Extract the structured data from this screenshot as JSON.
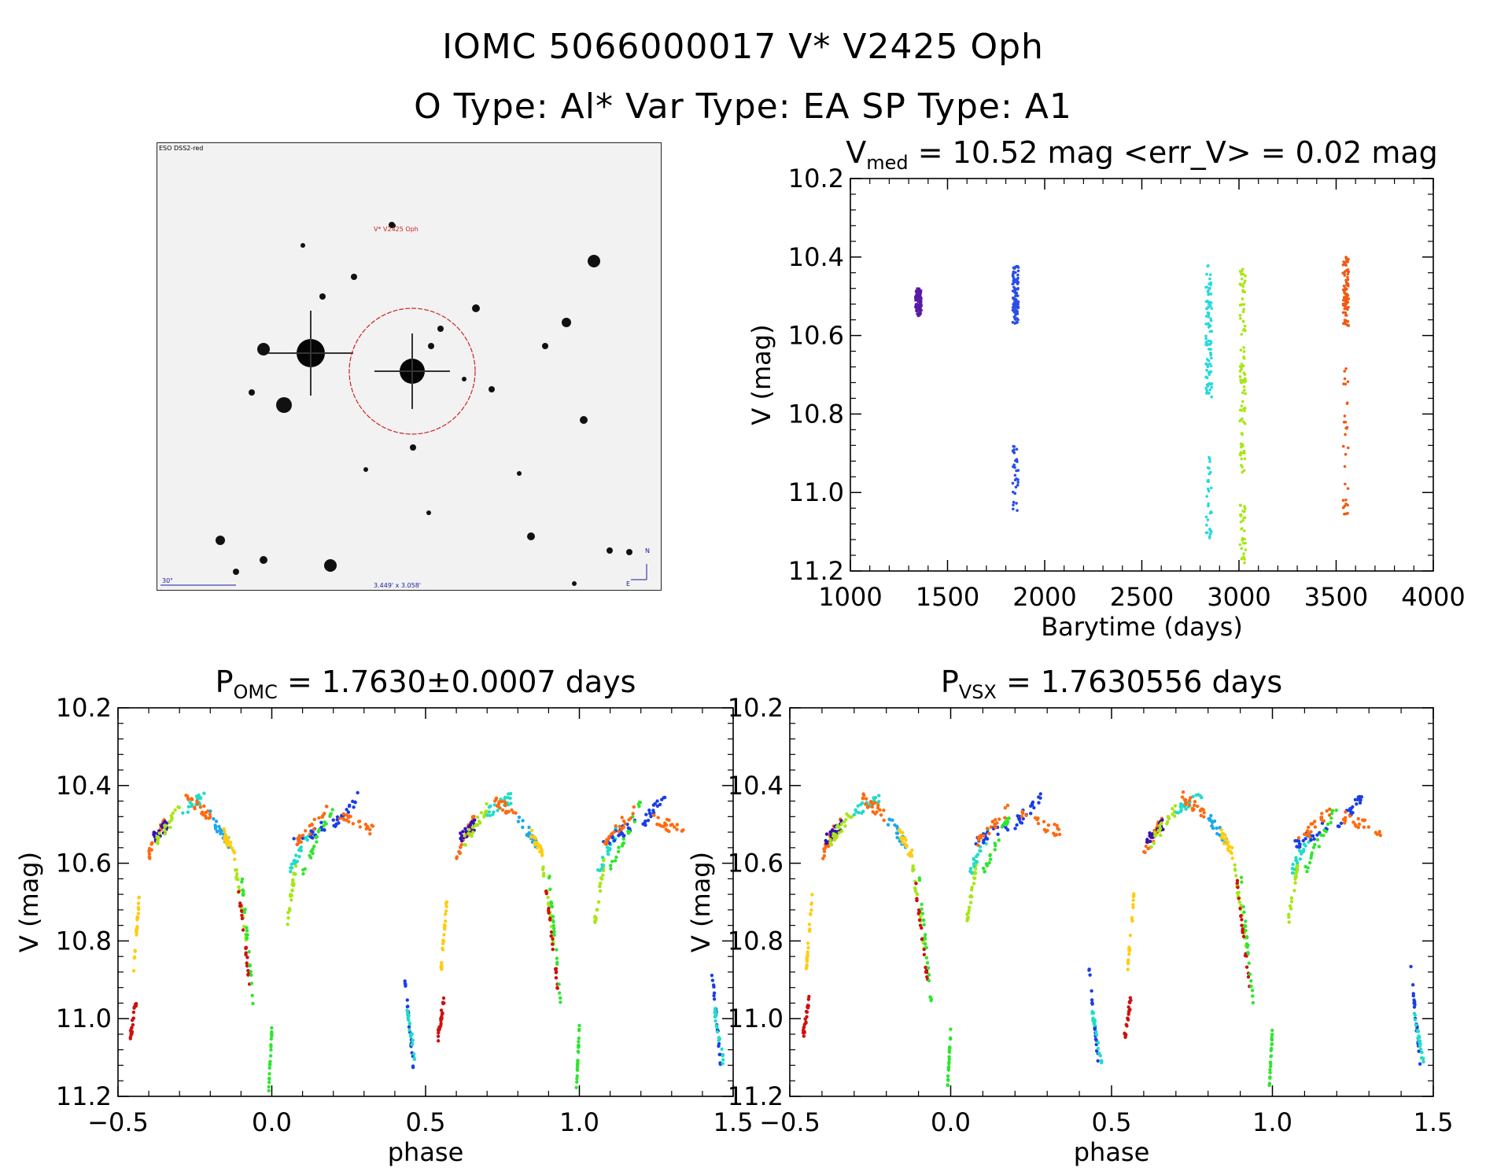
{
  "figure": {
    "title_line1": "IOMC 5066000017    V* V2425 Oph",
    "title_line2": "O Type: Al*   Var Type: EA   SP Type: A1"
  },
  "finder_chart": {
    "survey_label": "ESO DSS2-red",
    "target_label": "V* V2425 Oph",
    "scale_label": "30\"",
    "fov_label": "3.449' x 3.058'",
    "north_label": "N",
    "east_label": "E",
    "colors": {
      "marker": "#cc2222",
      "label": "#1a1aa0"
    }
  },
  "chart_data": [
    {
      "type": "scatter",
      "id": "lightcurve",
      "title_main": "V",
      "title_sub": "med",
      "title_rest": " = 10.52 mag <err_V> = 0.02 mag",
      "xlabel": "Barytime (days)",
      "ylabel": "V (mag)",
      "xlim": [
        1000,
        4000
      ],
      "ylim": [
        11.2,
        10.2
      ],
      "y_inverted": true,
      "xticks": [
        1000,
        1500,
        2000,
        2500,
        3000,
        3500,
        4000
      ],
      "yticks": [
        "10.2",
        "10.4",
        "10.6",
        "10.8",
        "11.0",
        "11.2"
      ],
      "grid": false,
      "segments": [
        {
          "x": 1350,
          "bright": [
            10.48,
            10.55
          ],
          "faint": null,
          "color": "#5a1aa8"
        },
        {
          "x": 1850,
          "bright": [
            10.42,
            10.57
          ],
          "faint": [
            10.88,
            11.06
          ],
          "color": "#2a4ee6"
        },
        {
          "x": 2845,
          "bright": [
            10.42,
            10.76
          ],
          "faint": [
            10.89,
            11.12
          ],
          "color": "#25d8e0"
        },
        {
          "x": 3020,
          "bright": [
            10.43,
            10.96
          ],
          "faint": [
            11.03,
            11.18
          ],
          "color": "#a8e614"
        },
        {
          "x": 3550,
          "bright": [
            10.4,
            10.58
          ],
          "faint": [
            10.65,
            11.07
          ],
          "color": "#f05a14"
        }
      ]
    },
    {
      "type": "scatter",
      "id": "phase_omc",
      "title_main": "P",
      "title_sub": "OMC",
      "title_rest": " = 1.7630±0.0007 days",
      "xlabel": "phase",
      "ylabel": "V (mag)",
      "xlim": [
        -0.5,
        1.5
      ],
      "ylim": [
        11.2,
        10.2
      ],
      "y_inverted": true,
      "xticks": [
        "−0.5",
        "0.0",
        "0.5",
        "1.0",
        "1.5"
      ],
      "yticks": [
        "10.2",
        "10.4",
        "10.6",
        "10.8",
        "11.0",
        "11.2"
      ],
      "grid": false,
      "period_days": 1.763
    },
    {
      "type": "scatter",
      "id": "phase_vsx",
      "title_main": "P",
      "title_sub": "VSX",
      "title_rest": " = 1.7630556 days",
      "xlabel": "phase",
      "ylabel": "V (mag)",
      "xlim": [
        -0.5,
        1.5
      ],
      "ylim": [
        11.2,
        10.2
      ],
      "y_inverted": true,
      "xticks": [
        "−0.5",
        "0.0",
        "0.5",
        "1.0",
        "1.5"
      ],
      "yticks": [
        "10.2",
        "10.4",
        "10.6",
        "10.8",
        "11.0",
        "11.2"
      ],
      "grid": false,
      "period_days": 1.7630556
    }
  ],
  "phase_curve": {
    "description": "folded light curve points, phase 0..1, repeated at +1",
    "colors": [
      "#d01010",
      "#ff6a10",
      "#ffcc10",
      "#a6e616",
      "#2ee62e",
      "#22dcc8",
      "#1aa8f0",
      "#1a3ee6",
      "#3a10b0"
    ],
    "runs": [
      {
        "phase": [
          0.54,
          0.56
        ],
        "mag": [
          11.05,
          10.95
        ],
        "color": "#d01010"
      },
      {
        "phase": [
          0.55,
          0.57
        ],
        "mag": [
          10.88,
          10.68
        ],
        "color": "#ffcc10"
      },
      {
        "phase": [
          0.6,
          0.66
        ],
        "mag": [
          10.58,
          10.48
        ],
        "color": "#ff6a10"
      },
      {
        "phase": [
          0.61,
          0.66
        ],
        "mag": [
          10.54,
          10.5
        ],
        "color": "#3a10b0"
      },
      {
        "phase": [
          0.62,
          0.7
        ],
        "mag": [
          10.55,
          10.46
        ],
        "color": "#a6e616"
      },
      {
        "phase": [
          0.7,
          0.78
        ],
        "mag": [
          10.47,
          10.43
        ],
        "color": "#22dcc8"
      },
      {
        "phase": [
          0.72,
          0.8
        ],
        "mag": [
          10.43,
          10.48
        ],
        "color": "#ff6a10"
      },
      {
        "phase": [
          0.8,
          0.86
        ],
        "mag": [
          10.48,
          10.55
        ],
        "color": "#1aa8f0"
      },
      {
        "phase": [
          0.84,
          0.88
        ],
        "mag": [
          10.52,
          10.58
        ],
        "color": "#ffcc10"
      },
      {
        "phase": [
          0.88,
          0.92
        ],
        "mag": [
          10.6,
          10.82
        ],
        "color": "#a6e616"
      },
      {
        "phase": [
          0.89,
          0.93
        ],
        "mag": [
          10.65,
          10.92
        ],
        "color": "#d01010"
      },
      {
        "phase": [
          0.9,
          0.94
        ],
        "mag": [
          10.62,
          10.96
        ],
        "color": "#2ee62e"
      },
      {
        "phase": [
          0.99,
          1.0
        ],
        "mag": [
          11.18,
          11.03
        ],
        "color": "#2ee62e"
      },
      {
        "phase": [
          1.05,
          1.08
        ],
        "mag": [
          10.75,
          10.6
        ],
        "color": "#a6e616"
      },
      {
        "phase": [
          1.06,
          1.12
        ],
        "mag": [
          10.62,
          10.52
        ],
        "color": "#22dcc8"
      },
      {
        "phase": [
          1.07,
          1.18
        ],
        "mag": [
          10.55,
          10.5
        ],
        "color": "#1a3ee6"
      },
      {
        "phase": [
          1.1,
          1.2
        ],
        "mag": [
          10.62,
          10.45
        ],
        "color": "#2ee62e"
      },
      {
        "phase": [
          1.08,
          1.18
        ],
        "mag": [
          10.55,
          10.46
        ],
        "color": "#ff6a10"
      },
      {
        "phase": [
          1.2,
          1.28
        ],
        "mag": [
          10.5,
          10.43
        ],
        "color": "#1a3ee6"
      },
      {
        "phase": [
          1.22,
          1.34
        ],
        "mag": [
          10.48,
          10.52
        ],
        "color": "#ff6a10"
      },
      {
        "phase": [
          1.43,
          1.46
        ],
        "mag": [
          10.87,
          11.12
        ],
        "color": "#1a3ee6"
      },
      {
        "phase": [
          1.44,
          1.47
        ],
        "mag": [
          10.98,
          11.12
        ],
        "color": "#22dcc8"
      }
    ]
  }
}
